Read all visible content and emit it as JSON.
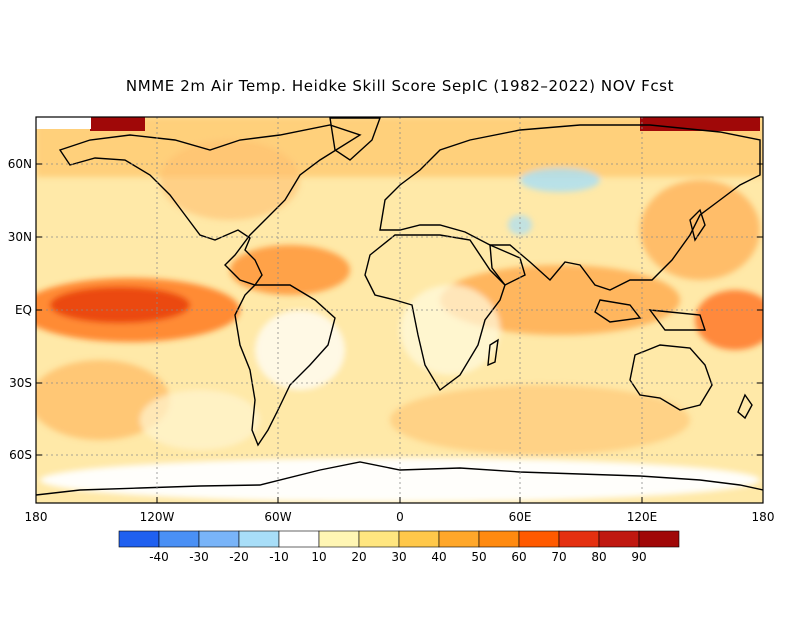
{
  "title": "NMME 2m Air Temp. Heidke Skill Score SepIC (1982–2022) NOV Fcst",
  "map": {
    "projection": "equirectangular",
    "lon_range": [
      -180,
      180
    ],
    "lat_range": [
      -80,
      80
    ],
    "lat_labels": [
      "60N",
      "30N",
      "EQ",
      "30S",
      "60S"
    ],
    "lon_labels": [
      "180",
      "120W",
      "60W",
      "0",
      "60E",
      "120E",
      "180"
    ],
    "grid": "dotted"
  },
  "colorbar": {
    "colors": [
      "#1f60f0",
      "#4a90f5",
      "#79b4f8",
      "#a8def8",
      "#ffffff",
      "#fff6b4",
      "#ffe680",
      "#ffc84a",
      "#ffa72a",
      "#ff8a10",
      "#ff5a00",
      "#e43010",
      "#c01810",
      "#a00808"
    ],
    "tick_labels": [
      "-40",
      "-30",
      "-20",
      "-10",
      "10",
      "20",
      "30",
      "40",
      "50",
      "60",
      "70",
      "80",
      "90"
    ]
  }
}
